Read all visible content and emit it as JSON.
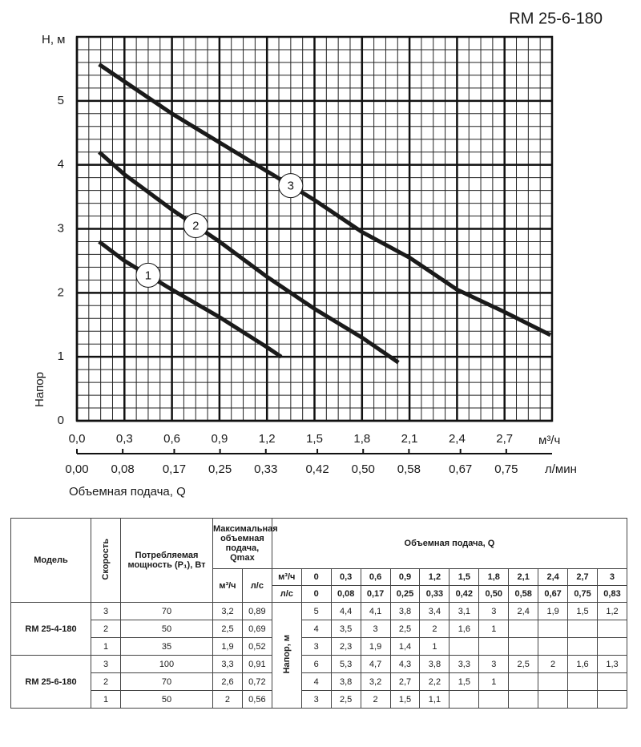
{
  "chart_data": {
    "type": "line",
    "title": "RM 25-6-180",
    "y_unit": "Н, м",
    "ylabel": "Напор",
    "x_unit": "м³/ч",
    "x2_unit": "л/мин",
    "xlabel": "Объемная подача, Q",
    "xlim": [
      0,
      3.0
    ],
    "ylim": [
      0,
      6
    ],
    "xticks": [
      {
        "value": 0,
        "label": "0,0"
      },
      {
        "value": 0.3,
        "label": "0,3"
      },
      {
        "value": 0.6,
        "label": "0,6"
      },
      {
        "value": 0.9,
        "label": "0,9"
      },
      {
        "value": 1.2,
        "label": "1,2"
      },
      {
        "value": 1.5,
        "label": "1,5"
      },
      {
        "value": 1.8,
        "label": "1,8"
      },
      {
        "value": 2.1,
        "label": "2,1"
      },
      {
        "value": 2.4,
        "label": "2,4"
      },
      {
        "value": 2.7,
        "label": "2,7"
      }
    ],
    "yticks": [
      0,
      1,
      2,
      3,
      4,
      5
    ],
    "x2lim": [
      0,
      0.83
    ],
    "x2ticks": [
      {
        "value": 0,
        "label": "0,00"
      },
      {
        "value": 0.08,
        "label": "0,08"
      },
      {
        "value": 0.17,
        "label": "0,17"
      },
      {
        "value": 0.25,
        "label": "0,25"
      },
      {
        "value": 0.33,
        "label": "0,33"
      },
      {
        "value": 0.42,
        "label": "0,42"
      },
      {
        "value": 0.5,
        "label": "0,50"
      },
      {
        "value": 0.58,
        "label": "0,58"
      },
      {
        "value": 0.67,
        "label": "0,67"
      },
      {
        "value": 0.75,
        "label": "0,75"
      }
    ],
    "grid": true,
    "series": [
      {
        "name": "1",
        "color": "#1a1a1a",
        "x": [
          0.14,
          0.3,
          0.6,
          0.9,
          1.2,
          1.29
        ],
        "values": [
          2.8,
          2.5,
          2.05,
          1.62,
          1.15,
          1.0
        ]
      },
      {
        "name": "2",
        "color": "#1a1a1a",
        "x": [
          0.14,
          0.3,
          0.6,
          0.9,
          1.2,
          1.5,
          1.8,
          2.03
        ],
        "values": [
          4.2,
          3.85,
          3.3,
          2.8,
          2.25,
          1.75,
          1.3,
          0.91
        ]
      },
      {
        "name": "3",
        "color": "#1a1a1a",
        "x": [
          0.14,
          0.6,
          0.9,
          1.2,
          1.5,
          1.8,
          2.1,
          2.4,
          2.7,
          2.99
        ],
        "values": [
          5.57,
          4.8,
          4.35,
          3.9,
          3.45,
          2.95,
          2.55,
          2.05,
          1.7,
          1.34
        ]
      }
    ]
  },
  "table": {
    "headers": {
      "model": "Модель",
      "speed": "Скорость",
      "power": "Потребляемая мощность (P₁), Вт",
      "qmax": "Максимальная объемная подача, Qmax",
      "qmax_m3h": "м³/ч",
      "qmax_ls": "л/с",
      "flow": "Объемная подача, Q",
      "flow_m3h": "м³/ч",
      "flow_ls": "л/с",
      "head": "Напор, м"
    },
    "flow_m3h": [
      "0",
      "0,3",
      "0,6",
      "0,9",
      "1,2",
      "1,5",
      "1,8",
      "2,1",
      "2,4",
      "2,7",
      "3"
    ],
    "flow_ls": [
      "0",
      "0,08",
      "0,17",
      "0,25",
      "0,33",
      "0,42",
      "0,50",
      "0,58",
      "0,67",
      "0,75",
      "0,83"
    ],
    "groups": [
      {
        "model": "RM 25-4-180",
        "rows": [
          {
            "speed": "3",
            "power": "70",
            "qmax_m3h": "3,2",
            "qmax_ls": "0,89",
            "head": [
              "5",
              "4,4",
              "4,1",
              "3,8",
              "3,4",
              "3,1",
              "3",
              "2,4",
              "1,9",
              "1,5",
              "1,2"
            ]
          },
          {
            "speed": "2",
            "power": "50",
            "qmax_m3h": "2,5",
            "qmax_ls": "0,69",
            "head": [
              "4",
              "3,5",
              "3",
              "2,5",
              "2",
              "1,6",
              "1"
            ]
          },
          {
            "speed": "1",
            "power": "35",
            "qmax_m3h": "1,9",
            "qmax_ls": "0,52",
            "head": [
              "3",
              "2,3",
              "1,9",
              "1,4",
              "1"
            ]
          }
        ]
      },
      {
        "model": "RM 25-6-180",
        "rows": [
          {
            "speed": "3",
            "power": "100",
            "qmax_m3h": "3,3",
            "qmax_ls": "0,91",
            "head": [
              "6",
              "5,3",
              "4,7",
              "4,3",
              "3,8",
              "3,3",
              "3",
              "2,5",
              "2",
              "1,6",
              "1,3"
            ]
          },
          {
            "speed": "2",
            "power": "70",
            "qmax_m3h": "2,6",
            "qmax_ls": "0,72",
            "head": [
              "4",
              "3,8",
              "3,2",
              "2,7",
              "2,2",
              "1,5",
              "1"
            ]
          },
          {
            "speed": "1",
            "power": "50",
            "qmax_m3h": "2",
            "qmax_ls": "0,56",
            "head": [
              "3",
              "2,5",
              "2",
              "1,5",
              "1,1"
            ]
          }
        ]
      }
    ]
  }
}
